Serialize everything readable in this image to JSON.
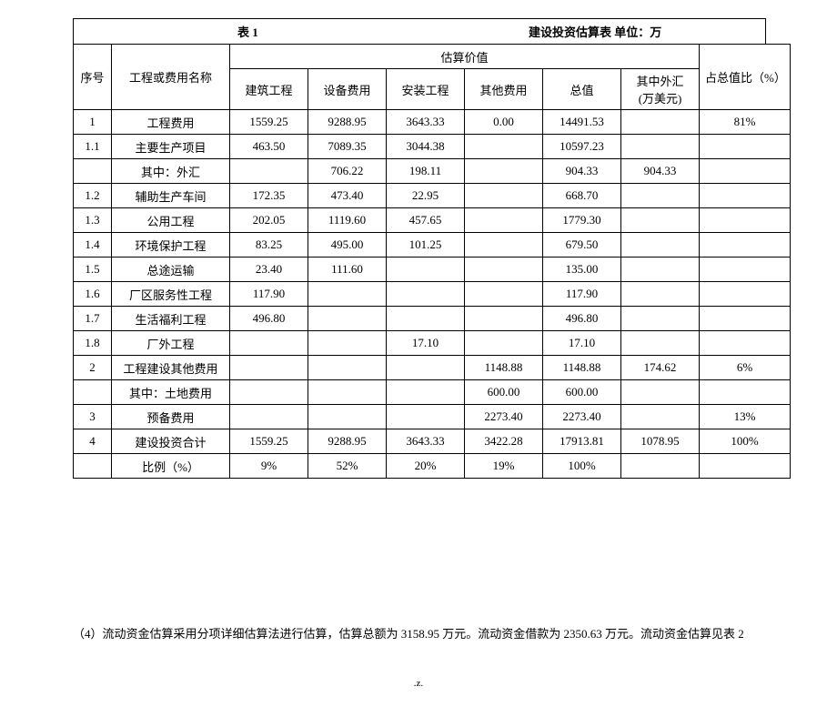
{
  "title": {
    "left": "表  1",
    "right": "建设投资估算表  单位：万"
  },
  "headers": {
    "seq": "序号",
    "name": "工程或费用名称",
    "est_group": "估算价值",
    "c1": "建筑工程",
    "c2": "设备费用",
    "c3": "安装工程",
    "c4": "其他费用",
    "c5": "总值",
    "c6_l1": "其中外汇",
    "c6_l2": "(万美元)",
    "pct": "占总值比（%）"
  },
  "rows": [
    {
      "seq": "1",
      "name": "工程费用",
      "c1": "1559.25",
      "c2": "9288.95",
      "c3": "3643.33",
      "c4": "0.00",
      "c5": "14491.53",
      "c6": "",
      "pct": "81%"
    },
    {
      "seq": "1.1",
      "name": "主要生产项目",
      "c1": "463.50",
      "c2": "7089.35",
      "c3": "3044.38",
      "c4": "",
      "c5": "10597.23",
      "c6": "",
      "pct": ""
    },
    {
      "seq": "",
      "name": "其中：外汇",
      "c1": "",
      "c2": "706.22",
      "c3": "198.11",
      "c4": "",
      "c5": "904.33",
      "c6": "904.33",
      "pct": ""
    },
    {
      "seq": "1.2",
      "name": "辅助生产车间",
      "c1": "172.35",
      "c2": "473.40",
      "c3": "22.95",
      "c4": "",
      "c5": "668.70",
      "c6": "",
      "pct": ""
    },
    {
      "seq": "1.3",
      "name": "公用工程",
      "c1": "202.05",
      "c2": "1119.60",
      "c3": "457.65",
      "c4": "",
      "c5": "1779.30",
      "c6": "",
      "pct": ""
    },
    {
      "seq": "1.4",
      "name": "环境保护工程",
      "c1": "83.25",
      "c2": "495.00",
      "c3": "101.25",
      "c4": "",
      "c5": "679.50",
      "c6": "",
      "pct": ""
    },
    {
      "seq": "1.5",
      "name": "总途运输",
      "c1": "23.40",
      "c2": "111.60",
      "c3": "",
      "c4": "",
      "c5": "135.00",
      "c6": "",
      "pct": ""
    },
    {
      "seq": "1.6",
      "name": "厂区服务性工程",
      "c1": "117.90",
      "c2": "",
      "c3": "",
      "c4": "",
      "c5": "117.90",
      "c6": "",
      "pct": ""
    },
    {
      "seq": "1.7",
      "name": "生活福利工程",
      "c1": "496.80",
      "c2": "",
      "c3": "",
      "c4": "",
      "c5": "496.80",
      "c6": "",
      "pct": ""
    },
    {
      "seq": "1.8",
      "name": "厂外工程",
      "c1": "",
      "c2": "",
      "c3": "17.10",
      "c4": "",
      "c5": "17.10",
      "c6": "",
      "pct": ""
    },
    {
      "seq": "2",
      "name": "工程建设其他费用",
      "c1": "",
      "c2": "",
      "c3": "",
      "c4": "1148.88",
      "c5": "1148.88",
      "c6": "174.62",
      "pct": "6%"
    },
    {
      "seq": "",
      "name": "其中：土地费用",
      "c1": "",
      "c2": "",
      "c3": "",
      "c4": "600.00",
      "c5": "600.00",
      "c6": "",
      "pct": ""
    },
    {
      "seq": "3",
      "name": "预备费用",
      "c1": "",
      "c2": "",
      "c3": "",
      "c4": "2273.40",
      "c5": "2273.40",
      "c6": "",
      "pct": "13%"
    },
    {
      "seq": "4",
      "name": "建设投资合计",
      "c1": "1559.25",
      "c2": "9288.95",
      "c3": "3643.33",
      "c4": "3422.28",
      "c5": "17913.81",
      "c6": "1078.95",
      "pct": "100%"
    },
    {
      "seq": "",
      "name": "比例（%）",
      "c1": "9%",
      "c2": "52%",
      "c3": "20%",
      "c4": "19%",
      "c5": "100%",
      "c6": "",
      "pct": ""
    }
  ],
  "note": "（4）流动资金估算采用分项详细估算法进行估算，估算总额为 3158.95 万元。流动资金借款为 2350.63 万元。流动资金估算见表 2",
  "footer": ".z."
}
